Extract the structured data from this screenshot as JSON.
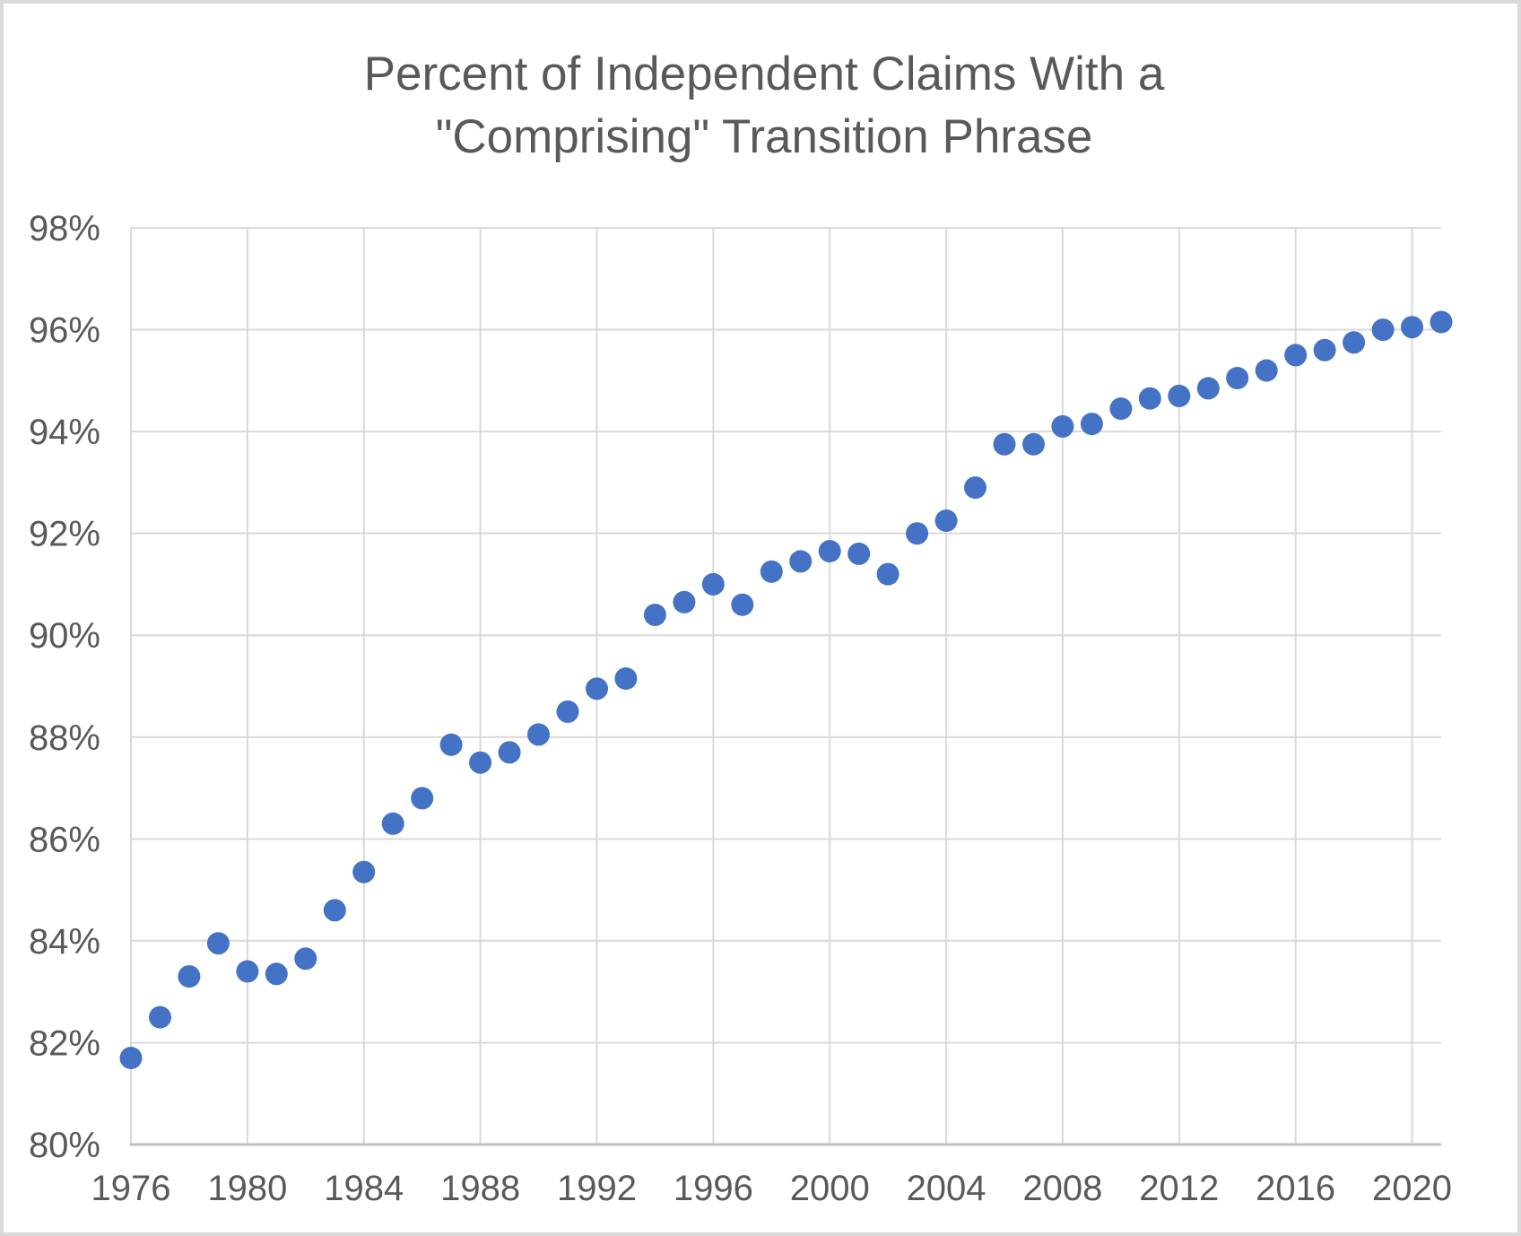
{
  "chart_data": {
    "type": "scatter",
    "title": "Percent of Independent Claims With a \"Comprising\" Transition Phrase",
    "title_lines": [
      "Percent of Independent Claims With a",
      "\"Comprising\" Transition Phrase"
    ],
    "xlabel": "",
    "ylabel": "",
    "xlim": [
      1976,
      2021
    ],
    "ylim": [
      80,
      98
    ],
    "grid": true,
    "legend": "none",
    "x_ticks": [
      1976,
      1980,
      1984,
      1988,
      1992,
      1996,
      2000,
      2004,
      2008,
      2012,
      2016,
      2020
    ],
    "x_tick_labels": [
      "1976",
      "1980",
      "1984",
      "1988",
      "1992",
      "1996",
      "2000",
      "2004",
      "2008",
      "2012",
      "2016",
      "2020"
    ],
    "y_ticks": [
      98,
      96,
      94,
      92,
      90,
      88,
      86,
      84,
      82,
      80
    ],
    "y_tick_labels": [
      "98%",
      "96%",
      "94%",
      "92%",
      "90%",
      "88%",
      "86%",
      "84%",
      "82%",
      "80%"
    ],
    "x": [
      1976,
      1977,
      1978,
      1979,
      1980,
      1981,
      1982,
      1983,
      1984,
      1985,
      1986,
      1987,
      1988,
      1989,
      1990,
      1991,
      1992,
      1993,
      1994,
      1995,
      1996,
      1997,
      1998,
      1999,
      2000,
      2001,
      2002,
      2003,
      2004,
      2005,
      2006,
      2007,
      2008,
      2009,
      2010,
      2011,
      2012,
      2013,
      2014,
      2015,
      2016,
      2017,
      2018,
      2019,
      2020,
      2021
    ],
    "values": [
      81.7,
      82.5,
      83.3,
      83.95,
      83.4,
      83.35,
      83.65,
      84.6,
      85.35,
      86.3,
      86.8,
      87.85,
      87.5,
      87.7,
      88.05,
      88.5,
      88.95,
      89.15,
      90.4,
      90.65,
      91.0,
      90.6,
      91.25,
      91.45,
      91.65,
      91.6,
      91.2,
      92.0,
      92.25,
      92.9,
      93.75,
      93.75,
      94.1,
      94.15,
      94.45,
      94.65,
      94.7,
      94.85,
      95.05,
      95.2,
      95.5,
      95.6,
      95.75,
      96.0,
      96.05,
      96.15
    ],
    "colors": {
      "marker": "#4472C4",
      "gridline": "#D9D9D9",
      "axis_line": "#BFBFBF",
      "text": "#595959"
    }
  }
}
